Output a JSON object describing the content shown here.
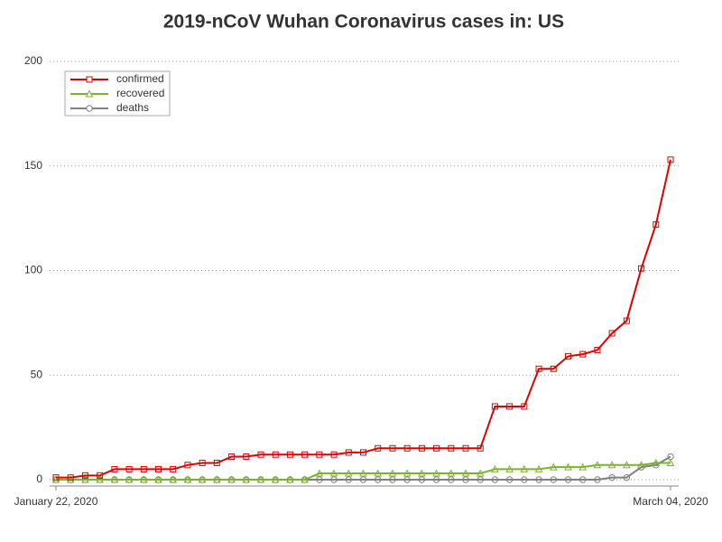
{
  "chart_data": {
    "type": "line",
    "title": "2019-nCoV Wuhan Coronavirus cases in: US",
    "categories": [
      "January 22, 2020",
      null,
      null,
      null,
      null,
      null,
      null,
      null,
      null,
      null,
      null,
      null,
      null,
      null,
      null,
      null,
      null,
      null,
      null,
      null,
      null,
      null,
      null,
      null,
      null,
      null,
      null,
      null,
      null,
      null,
      null,
      null,
      null,
      null,
      null,
      null,
      null,
      null,
      null,
      null,
      null,
      null,
      "March 04, 2020"
    ],
    "series": [
      {
        "name": "confirmed",
        "color": "#e00000",
        "marker": "square",
        "values": [
          1,
          1,
          2,
          2,
          5,
          5,
          5,
          5,
          5,
          7,
          8,
          8,
          11,
          11,
          12,
          12,
          12,
          12,
          12,
          12,
          13,
          13,
          15,
          15,
          15,
          15,
          15,
          15,
          15,
          15,
          35,
          35,
          35,
          53,
          53,
          59,
          60,
          62,
          70,
          76,
          101,
          122,
          153
        ]
      },
      {
        "name": "recovered",
        "color": "#7ab32e",
        "marker": "triangle",
        "values": [
          0,
          0,
          0,
          0,
          0,
          0,
          0,
          0,
          0,
          0,
          0,
          0,
          0,
          0,
          0,
          0,
          0,
          0,
          3,
          3,
          3,
          3,
          3,
          3,
          3,
          3,
          3,
          3,
          3,
          3,
          5,
          5,
          5,
          5,
          6,
          6,
          6,
          7,
          7,
          7,
          7,
          8,
          8
        ]
      },
      {
        "name": "deaths",
        "color": "#808080",
        "marker": "circle",
        "values": [
          0,
          0,
          0,
          0,
          0,
          0,
          0,
          0,
          0,
          0,
          0,
          0,
          0,
          0,
          0,
          0,
          0,
          0,
          0,
          0,
          0,
          0,
          0,
          0,
          0,
          0,
          0,
          0,
          0,
          0,
          0,
          0,
          0,
          0,
          0,
          0,
          0,
          0,
          1,
          1,
          6,
          7,
          11
        ]
      }
    ],
    "ylim": [
      0,
      200
    ],
    "yticks": [
      0,
      50,
      100,
      150,
      200
    ],
    "grid": true,
    "legend": "top-left"
  }
}
